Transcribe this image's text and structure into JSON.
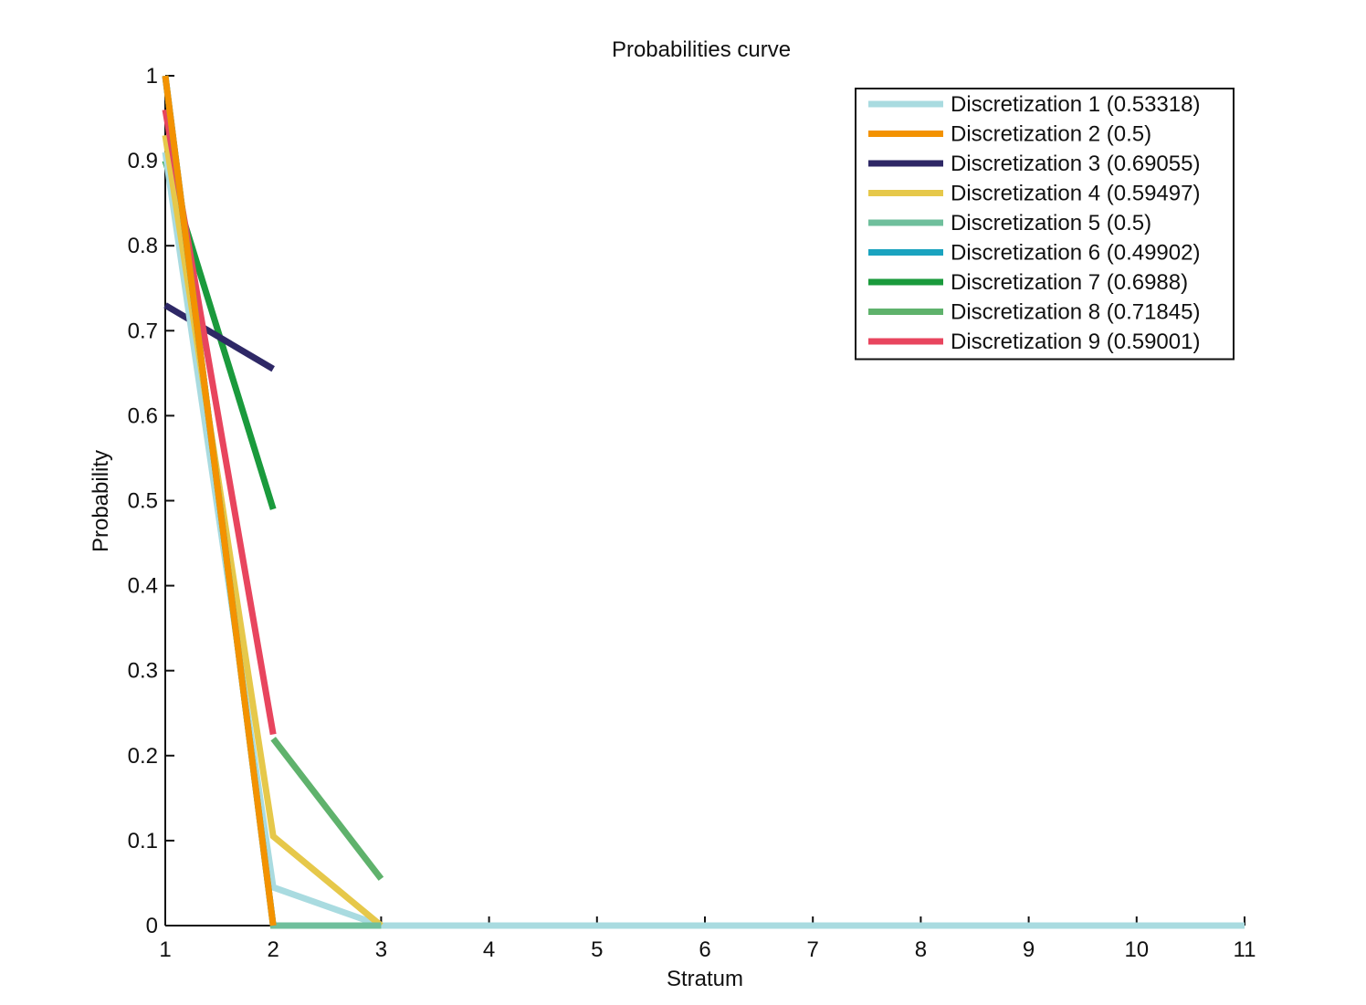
{
  "chart_data": {
    "type": "line",
    "title": "Probabilities curve",
    "xlabel": "Stratum",
    "ylabel": "Probability",
    "xlim": [
      1,
      11
    ],
    "ylim": [
      0,
      1
    ],
    "xticks": [
      "1",
      "2",
      "3",
      "4",
      "5",
      "6",
      "7",
      "8",
      "9",
      "10",
      "11"
    ],
    "yticks": [
      "0",
      "0.1",
      "0.2",
      "0.3",
      "0.4",
      "0.5",
      "0.6",
      "0.7",
      "0.8",
      "0.9",
      "1"
    ],
    "grid": false,
    "legend_position": "top-right",
    "series": [
      {
        "name": "Discretization 1 (0.53318)",
        "color": "#a9dbe0",
        "x": [
          1,
          2,
          3,
          4,
          5,
          6,
          7,
          8,
          9,
          10,
          11
        ],
        "y": [
          0.91,
          0.045,
          0,
          0,
          0,
          0,
          0,
          0,
          0,
          0,
          0
        ]
      },
      {
        "name": "Discretization 2 (0.5)",
        "color": "#f39200",
        "x": [
          1,
          2
        ],
        "y": [
          1,
          0
        ]
      },
      {
        "name": "Discretization 3 (0.69055)",
        "color": "#2e2866",
        "x": [
          1,
          2
        ],
        "y": [
          0.73,
          0.655
        ]
      },
      {
        "name": "Discretization 4 (0.59497)",
        "color": "#e6c84a",
        "x": [
          1,
          2,
          3
        ],
        "y": [
          0.93,
          0.105,
          0
        ]
      },
      {
        "name": "Discretization 5 (0.5)",
        "color": "#6fbf9c",
        "x": [
          1,
          2,
          3
        ],
        "y": [
          1,
          0,
          0
        ]
      },
      {
        "name": "Discretization 6 (0.49902)",
        "color": "#1aa3bf",
        "x": [
          1,
          2
        ],
        "y": [
          1,
          0
        ]
      },
      {
        "name": "Discretization 7 (0.6988)",
        "color": "#1a9a3c",
        "x": [
          1,
          2
        ],
        "y": [
          0.9,
          0.49
        ]
      },
      {
        "name": "Discretization 8 (0.71845)",
        "color": "#5fb26c",
        "x": [
          2,
          3
        ],
        "y": [
          0.22,
          0.055
        ]
      },
      {
        "name": "Discretization 9 (0.59001)",
        "color": "#e8455e",
        "x": [
          1,
          2
        ],
        "y": [
          0.96,
          0.225
        ]
      }
    ]
  }
}
